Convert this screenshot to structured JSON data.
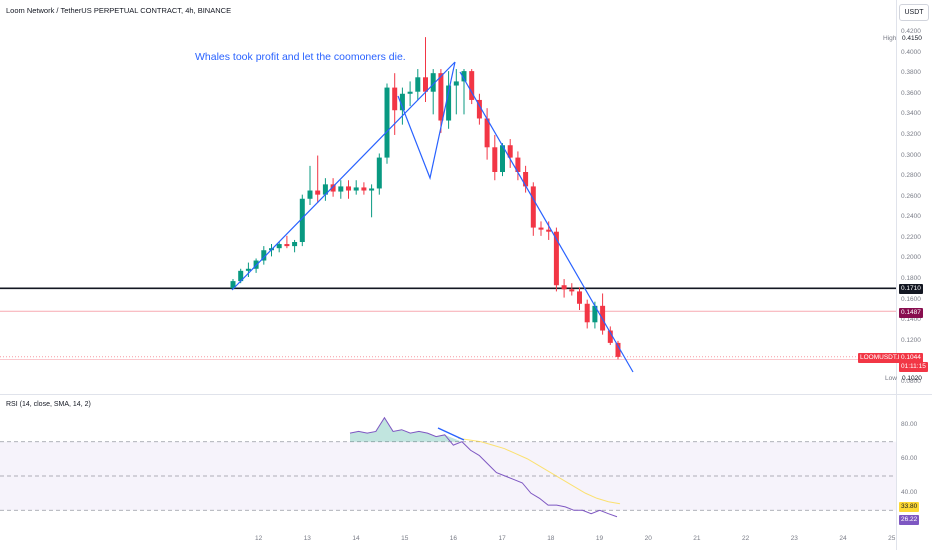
{
  "header": {
    "symbol_title": "Loom Network / TetherUS PERPETUAL CONTRACT, 4h, BINANCE",
    "currency_button": "USDT"
  },
  "annotation": "Whales took profit and let the coomoners die.",
  "price_axis": {
    "ticks": [
      "0.4200",
      "0.4000",
      "0.3800",
      "0.3600",
      "0.3400",
      "0.3200",
      "0.3000",
      "0.2800",
      "0.2600",
      "0.2400",
      "0.2200",
      "0.2000",
      "0.1800",
      "0.1600",
      "0.1400",
      "0.1200",
      "0.1000",
      "0.0800"
    ],
    "high_label": "High",
    "high_value": "0.4150",
    "horizontal_line_value": "0.1710",
    "red_line_value": "0.1487",
    "symbol_tag": "LOOMUSDT.P",
    "last_price": "0.1044",
    "countdown": "01:11:15",
    "low_label": "Low",
    "low_value": "0.1020"
  },
  "rsi": {
    "label": "RSI (14, close, SMA, 14, 2)",
    "ticks": [
      "80.00",
      "60.00",
      "40.00"
    ],
    "sma_value": "33.80",
    "rsi_value": "26.22"
  },
  "time_axis": {
    "ticks": [
      "12",
      "13",
      "14",
      "15",
      "16",
      "17",
      "18",
      "19",
      "20",
      "21",
      "22",
      "23",
      "24",
      "25"
    ]
  },
  "colors": {
    "up": "#089981",
    "down": "#f23645",
    "trendline": "#2962ff",
    "rsi_line": "#7e57c2",
    "rsi_sma": "#fdd835",
    "rsi_band": "#7e57c2"
  },
  "chart_data": {
    "type": "candlestick",
    "title": "Loom Network / TetherUS PERPETUAL CONTRACT, 4h, BINANCE",
    "interval": "4h",
    "x_ticks": [
      "12",
      "13",
      "14",
      "15",
      "16",
      "17",
      "18",
      "19",
      "20",
      "21",
      "22",
      "23",
      "24",
      "25"
    ],
    "ylim": [
      0.08,
      0.42
    ],
    "candles": [
      {
        "o": 0.171,
        "h": 0.18,
        "l": 0.17,
        "c": 0.178
      },
      {
        "o": 0.178,
        "h": 0.19,
        "l": 0.176,
        "c": 0.188
      },
      {
        "o": 0.188,
        "h": 0.196,
        "l": 0.182,
        "c": 0.19
      },
      {
        "o": 0.19,
        "h": 0.2,
        "l": 0.186,
        "c": 0.198
      },
      {
        "o": 0.198,
        "h": 0.212,
        "l": 0.194,
        "c": 0.208
      },
      {
        "o": 0.208,
        "h": 0.214,
        "l": 0.202,
        "c": 0.21
      },
      {
        "o": 0.21,
        "h": 0.216,
        "l": 0.206,
        "c": 0.214
      },
      {
        "o": 0.214,
        "h": 0.222,
        "l": 0.21,
        "c": 0.212
      },
      {
        "o": 0.212,
        "h": 0.218,
        "l": 0.206,
        "c": 0.216
      },
      {
        "o": 0.216,
        "h": 0.262,
        "l": 0.212,
        "c": 0.258
      },
      {
        "o": 0.258,
        "h": 0.29,
        "l": 0.252,
        "c": 0.266
      },
      {
        "o": 0.266,
        "h": 0.3,
        "l": 0.254,
        "c": 0.262
      },
      {
        "o": 0.262,
        "h": 0.278,
        "l": 0.256,
        "c": 0.272
      },
      {
        "o": 0.272,
        "h": 0.278,
        "l": 0.26,
        "c": 0.265
      },
      {
        "o": 0.265,
        "h": 0.276,
        "l": 0.258,
        "c": 0.27
      },
      {
        "o": 0.27,
        "h": 0.276,
        "l": 0.258,
        "c": 0.266
      },
      {
        "o": 0.266,
        "h": 0.276,
        "l": 0.262,
        "c": 0.269
      },
      {
        "o": 0.269,
        "h": 0.274,
        "l": 0.262,
        "c": 0.266
      },
      {
        "o": 0.266,
        "h": 0.272,
        "l": 0.24,
        "c": 0.268
      },
      {
        "o": 0.268,
        "h": 0.302,
        "l": 0.262,
        "c": 0.298
      },
      {
        "o": 0.298,
        "h": 0.37,
        "l": 0.292,
        "c": 0.366
      },
      {
        "o": 0.366,
        "h": 0.38,
        "l": 0.32,
        "c": 0.344
      },
      {
        "o": 0.344,
        "h": 0.366,
        "l": 0.33,
        "c": 0.36
      },
      {
        "o": 0.36,
        "h": 0.372,
        "l": 0.348,
        "c": 0.362
      },
      {
        "o": 0.362,
        "h": 0.384,
        "l": 0.354,
        "c": 0.376
      },
      {
        "o": 0.376,
        "h": 0.415,
        "l": 0.352,
        "c": 0.362
      },
      {
        "o": 0.362,
        "h": 0.384,
        "l": 0.34,
        "c": 0.38
      },
      {
        "o": 0.38,
        "h": 0.384,
        "l": 0.322,
        "c": 0.334
      },
      {
        "o": 0.334,
        "h": 0.382,
        "l": 0.326,
        "c": 0.368
      },
      {
        "o": 0.368,
        "h": 0.384,
        "l": 0.34,
        "c": 0.372
      },
      {
        "o": 0.372,
        "h": 0.384,
        "l": 0.34,
        "c": 0.382
      },
      {
        "o": 0.382,
        "h": 0.384,
        "l": 0.35,
        "c": 0.354
      },
      {
        "o": 0.354,
        "h": 0.36,
        "l": 0.33,
        "c": 0.336
      },
      {
        "o": 0.336,
        "h": 0.346,
        "l": 0.296,
        "c": 0.308
      },
      {
        "o": 0.308,
        "h": 0.32,
        "l": 0.276,
        "c": 0.284
      },
      {
        "o": 0.284,
        "h": 0.312,
        "l": 0.28,
        "c": 0.31
      },
      {
        "o": 0.31,
        "h": 0.316,
        "l": 0.288,
        "c": 0.298
      },
      {
        "o": 0.298,
        "h": 0.304,
        "l": 0.276,
        "c": 0.284
      },
      {
        "o": 0.284,
        "h": 0.29,
        "l": 0.264,
        "c": 0.27
      },
      {
        "o": 0.27,
        "h": 0.274,
        "l": 0.222,
        "c": 0.23
      },
      {
        "o": 0.23,
        "h": 0.236,
        "l": 0.222,
        "c": 0.228
      },
      {
        "o": 0.228,
        "h": 0.236,
        "l": 0.218,
        "c": 0.226
      },
      {
        "o": 0.226,
        "h": 0.23,
        "l": 0.168,
        "c": 0.174
      },
      {
        "o": 0.174,
        "h": 0.18,
        "l": 0.162,
        "c": 0.17
      },
      {
        "o": 0.17,
        "h": 0.176,
        "l": 0.164,
        "c": 0.168
      },
      {
        "o": 0.168,
        "h": 0.172,
        "l": 0.15,
        "c": 0.156
      },
      {
        "o": 0.156,
        "h": 0.16,
        "l": 0.132,
        "c": 0.138
      },
      {
        "o": 0.138,
        "h": 0.158,
        "l": 0.132,
        "c": 0.154
      },
      {
        "o": 0.154,
        "h": 0.166,
        "l": 0.126,
        "c": 0.13
      },
      {
        "o": 0.13,
        "h": 0.134,
        "l": 0.116,
        "c": 0.118
      },
      {
        "o": 0.118,
        "h": 0.12,
        "l": 0.102,
        "c": 0.1044
      }
    ],
    "horizontal_levels": [
      0.171,
      0.1487
    ],
    "rsi": {
      "name": "RSI (14, close, SMA, 14, 2)",
      "ylim": [
        22,
        92
      ],
      "upper_band": 70,
      "lower_band": 30,
      "mid_line": 50,
      "ticks": [
        80,
        60,
        40
      ],
      "rsi_values": [
        75,
        76,
        75,
        76,
        84,
        76,
        77,
        75,
        76,
        75,
        73,
        74,
        68,
        70,
        65,
        62,
        57,
        52,
        50,
        48,
        46,
        40,
        37,
        33,
        33,
        32,
        30,
        30,
        28,
        30,
        28,
        26.22
      ],
      "sma_values": [
        72,
        71,
        70,
        68,
        66,
        63,
        60,
        56,
        52,
        48,
        44,
        40,
        37,
        35,
        33.8
      ],
      "last_rsi": 26.22,
      "last_sma": 33.8
    }
  }
}
